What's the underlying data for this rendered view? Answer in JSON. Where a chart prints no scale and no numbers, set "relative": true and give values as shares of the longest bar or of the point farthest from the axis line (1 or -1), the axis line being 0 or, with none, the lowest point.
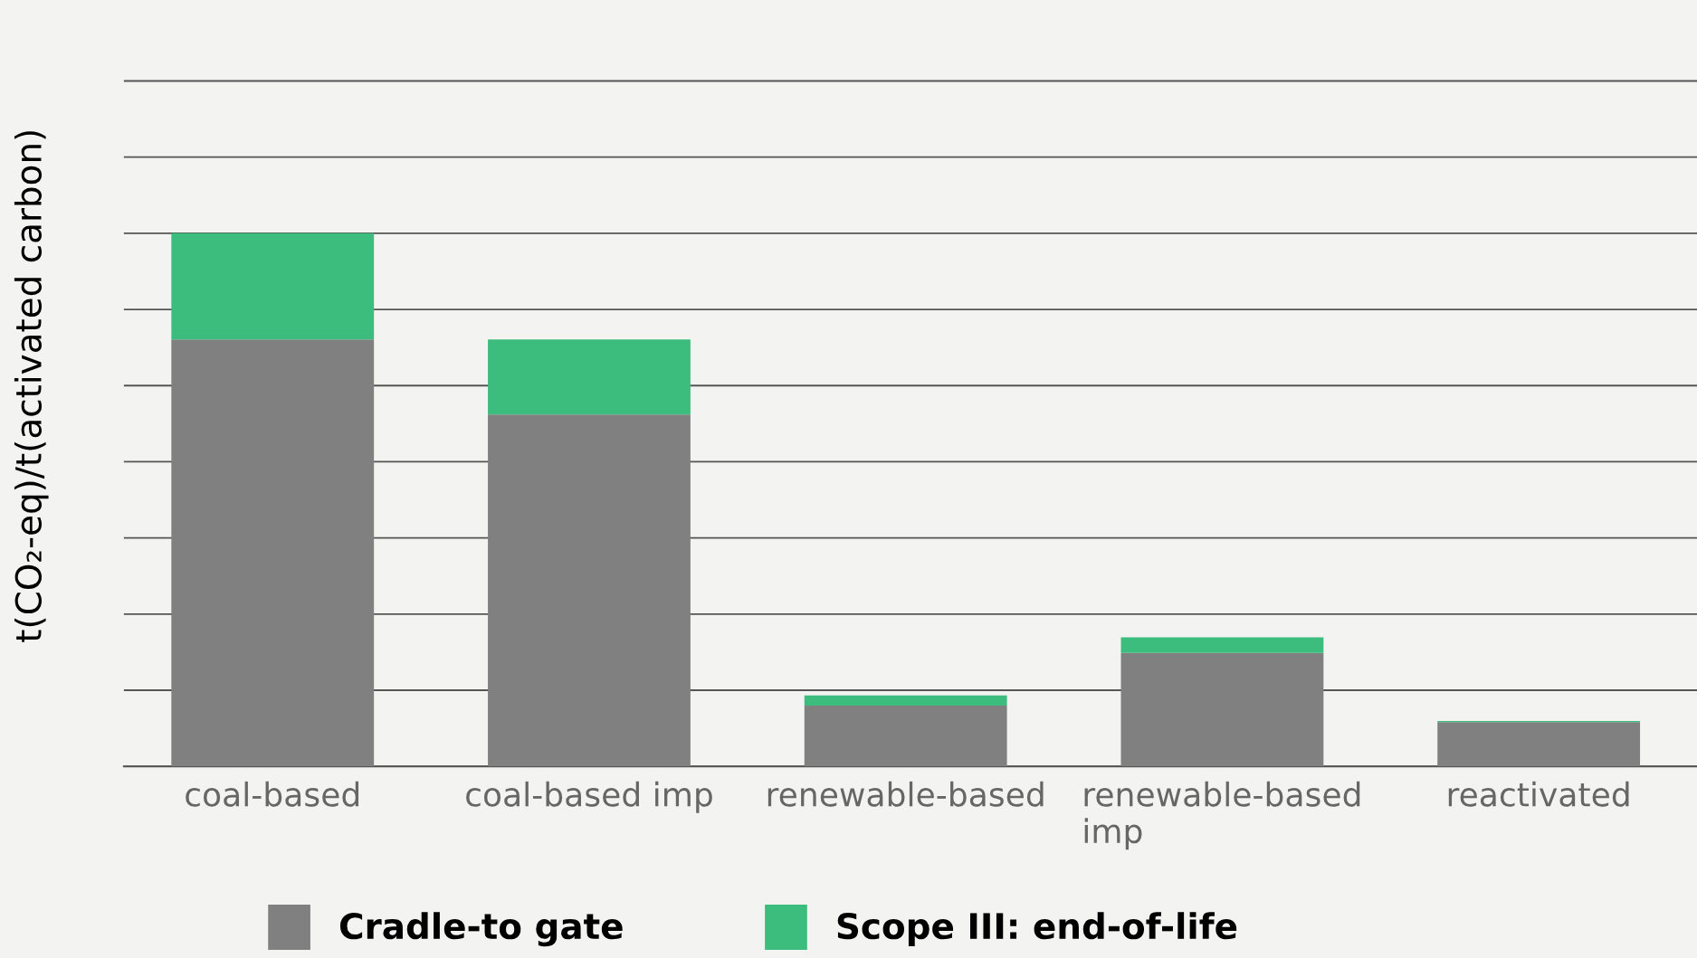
{
  "chart_data": {
    "type": "bar",
    "relative": true,
    "stacked": true,
    "ylabel": "t(CO₂-eq)/t(activated carbon)",
    "categories": [
      "coal-based",
      "coal-based imp",
      "renewable-based",
      "renewable-based imp",
      "reactivated"
    ],
    "series": [
      {
        "name": "Cradle-to gate",
        "color": "#808080",
        "values": [
          0.801,
          0.66,
          0.114,
          0.213,
          0.083
        ]
      },
      {
        "name": "Scope III: end-of-life",
        "color": "#3dbd7d",
        "values": [
          0.199,
          0.141,
          0.019,
          0.029,
          0.002
        ]
      }
    ],
    "grid": "y",
    "legend": "bottom"
  }
}
